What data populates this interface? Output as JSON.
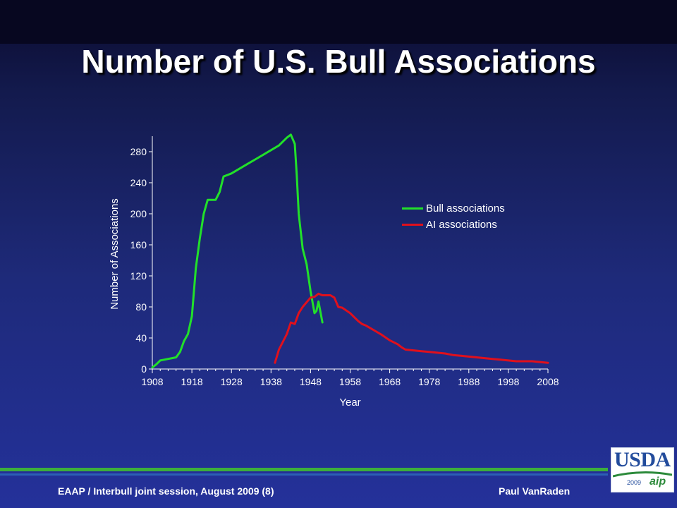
{
  "slide": {
    "title": "Number of U.S. Bull Associations",
    "footer_left": "EAAP / Interbull joint session, August 2009 (8)",
    "footer_right": "Paul VanRaden",
    "logo_text": "USDA",
    "logo_year": "2009",
    "logo_mark": "aip"
  },
  "colors": {
    "bull": "#22e02a",
    "ai": "#e0101c",
    "axis": "#ffffff"
  },
  "chart_data": {
    "type": "line",
    "title": "",
    "xlabel": "Year",
    "ylabel": "Number of Associations",
    "xlim": [
      1908,
      2008
    ],
    "ylim": [
      0,
      300
    ],
    "xticks": [
      1908,
      1918,
      1928,
      1938,
      1948,
      1958,
      1968,
      1978,
      1988,
      1998,
      2008
    ],
    "yticks": [
      0,
      40,
      80,
      120,
      160,
      200,
      240,
      280
    ],
    "legend_position": "right",
    "grid": false,
    "series": [
      {
        "name": "Bull associations",
        "color_key": "bull",
        "x": [
          1908,
          1909,
          1910,
          1911,
          1912,
          1913,
          1914,
          1915,
          1916,
          1917,
          1918,
          1919,
          1920,
          1921,
          1922,
          1923,
          1924,
          1925,
          1926,
          1927,
          1928,
          1930,
          1932,
          1934,
          1936,
          1938,
          1940,
          1942,
          1943,
          1944,
          1944.5,
          1945,
          1946,
          1947,
          1948,
          1949,
          1949.5,
          1950,
          1951
        ],
        "y": [
          2,
          6,
          11,
          12,
          13,
          14,
          15,
          22,
          36,
          45,
          68,
          130,
          168,
          200,
          218,
          218,
          218,
          228,
          248,
          250,
          252,
          258,
          264,
          270,
          276,
          282,
          288,
          298,
          302,
          290,
          250,
          200,
          155,
          135,
          100,
          72,
          75,
          87,
          60
        ]
      },
      {
        "name": "AI associations",
        "color_key": "ai",
        "x": [
          1939,
          1940,
          1942,
          1943,
          1944,
          1945,
          1946,
          1947,
          1948,
          1949,
          1950,
          1951,
          1952,
          1953,
          1954,
          1955,
          1956,
          1958,
          1960,
          1961,
          1962,
          1964,
          1966,
          1968,
          1970,
          1971,
          1972,
          1974,
          1976,
          1978,
          1980,
          1982,
          1984,
          1986,
          1988,
          1990,
          1992,
          1994,
          1996,
          1998,
          2000,
          2002,
          2004,
          2006,
          2008
        ],
        "y": [
          8,
          25,
          45,
          60,
          58,
          72,
          80,
          86,
          92,
          93,
          97,
          95,
          95,
          95,
          92,
          80,
          79,
          72,
          62,
          58,
          56,
          50,
          44,
          37,
          32,
          28,
          25,
          24,
          23,
          22,
          21,
          20,
          18,
          17,
          16,
          15,
          14,
          13,
          12,
          11,
          10,
          10,
          10,
          9,
          8
        ]
      }
    ]
  }
}
